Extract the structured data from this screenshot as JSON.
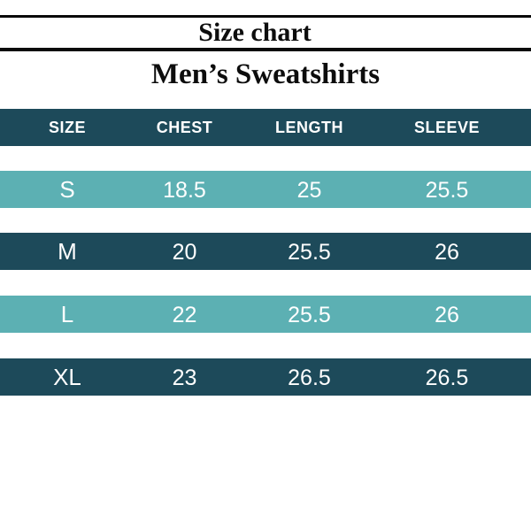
{
  "header": {
    "title": "Size chart",
    "subtitle": "Men’s Sweatshirts"
  },
  "chart_data": {
    "type": "table",
    "title": "Size chart",
    "subtitle": "Men’s Sweatshirts",
    "columns": [
      "SIZE",
      "CHEST",
      "LENGTH",
      "SLEEVE"
    ],
    "rows": [
      [
        "S",
        "18.5",
        "25",
        "25.5"
      ],
      [
        "M",
        "20",
        "25.5",
        "26"
      ],
      [
        "L",
        "22",
        "25.5",
        "26"
      ],
      [
        "XL",
        "23",
        "26.5",
        "26.5"
      ]
    ],
    "layout_hints": {
      "row_band_colors": [
        "dark",
        "teal",
        "dark",
        "teal",
        "dark"
      ],
      "grid": false,
      "legend": false
    }
  },
  "colors": {
    "header_bg": "#1d4a5a",
    "row_dark_bg": "#1d4a5a",
    "row_teal_bg": "#5cb0b3",
    "row_text": "#ffffff",
    "title_text": "#0d0d0d",
    "rule": "#0a0a0a",
    "background": "#ffffff"
  }
}
